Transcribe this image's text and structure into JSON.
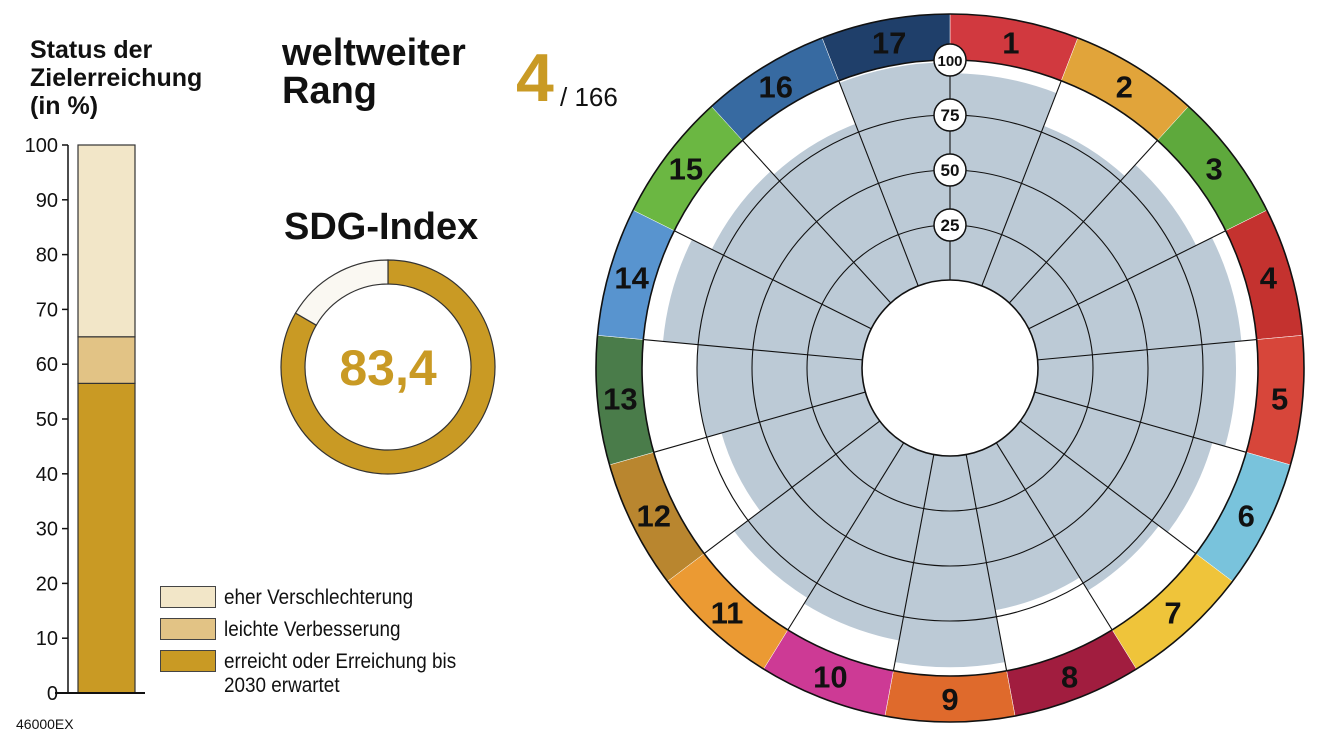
{
  "stack_title_lines": [
    "Status der",
    "Zielerreichung",
    "(in %)"
  ],
  "rank": {
    "title_lines": [
      "weltweiter",
      "Rang"
    ],
    "value": "4",
    "total": "/ 166"
  },
  "index": {
    "title": "SDG-Index",
    "value": "83,4",
    "score": 83.4
  },
  "code_label": "46000EX",
  "legend": [
    {
      "label": "eher Verschlechterung",
      "color": "#f2e6c8"
    },
    {
      "label": "leichte Verbesserung",
      "color": "#e2c385"
    },
    {
      "label": "erreicht oder Erreichung bis\n2030 erwartet",
      "color": "#c99a24"
    }
  ],
  "chart_data": [
    {
      "type": "bar",
      "stacked": true,
      "ylim": [
        0,
        100
      ],
      "yticks": [
        "0",
        "10",
        "20",
        "30",
        "40",
        "50",
        "60",
        "70",
        "80",
        "90",
        "100"
      ],
      "series": [
        {
          "name": "erreicht oder Erreichung bis 2030 erwartet",
          "values": [
            56.5
          ],
          "color": "#c99a24"
        },
        {
          "name": "leichte Verbesserung",
          "values": [
            8.5
          ],
          "color": "#e2c385"
        },
        {
          "name": "eher Verschlechterung",
          "values": [
            35
          ],
          "color": "#f2e6c8"
        }
      ]
    },
    {
      "type": "pie",
      "values": [
        83.4,
        16.6
      ],
      "colors": [
        "#c99a24",
        "#faf8f2"
      ]
    },
    {
      "type": "bar",
      "polar": true,
      "rlim": [
        0,
        100
      ],
      "rticks": [
        "25",
        "50",
        "75",
        "100"
      ],
      "categories": [
        "1",
        "2",
        "3",
        "4",
        "5",
        "6",
        "7",
        "8",
        "9",
        "10",
        "11",
        "12",
        "13",
        "14",
        "15",
        "16",
        "17"
      ],
      "values": [
        94,
        78,
        85,
        93,
        90,
        84,
        79,
        72,
        96,
        86,
        83,
        68,
        75,
        91,
        81,
        79,
        99
      ],
      "category_colors": [
        "#d1393f",
        "#e1a43a",
        "#5ea93c",
        "#c4322f",
        "#d7463a",
        "#79c3dc",
        "#efc43a",
        "#a11d3f",
        "#df6a2c",
        "#cd3a95",
        "#eb9a33",
        "#b9862f",
        "#4a7c4a",
        "#5894cf",
        "#6bb742",
        "#376aa1",
        "#1f3f6a"
      ],
      "fill_color": "#bccad6"
    }
  ]
}
